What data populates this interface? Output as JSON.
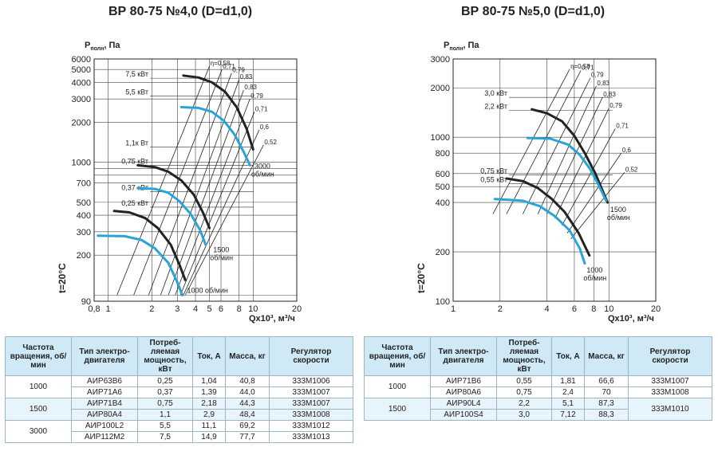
{
  "chart_data": [
    {
      "type": "line",
      "title": "ВР 80-75 №4,0 (D=d1,0)",
      "ylabel_main": "P",
      "ylabel_sub": "полн",
      "ylabel_unit": ", Па",
      "xlabel": "Qx10³, м³/ч",
      "temp_label": "t=20°C",
      "xscale": "log",
      "yscale": "log",
      "xlim": [
        0.8,
        20
      ],
      "ylim": [
        90,
        6000
      ],
      "xticks": [
        0.8,
        1,
        2,
        3,
        4,
        5,
        6,
        8,
        10,
        20
      ],
      "xtick_labels": [
        "0,8",
        "1",
        "2",
        "3",
        "4",
        "5",
        "6",
        "8",
        "10",
        "20"
      ],
      "yticks": [
        90,
        100,
        200,
        300,
        400,
        500,
        700,
        800,
        900,
        1000,
        2000,
        3000,
        4000,
        5000,
        6000
      ],
      "ytick_labels": [
        "90",
        "",
        "200",
        "300",
        "400",
        "500",
        "700",
        "",
        "",
        "1000",
        "2000",
        "3000",
        "4000",
        "5000",
        "6000"
      ],
      "grid": true,
      "series": [
        {
          "name": "3000 об/мин",
          "color": "#222222",
          "x": [
            3.3,
            4.2,
            5.2,
            6.4,
            7.7,
            9.0,
            10.0
          ],
          "y": [
            4500,
            4350,
            4000,
            3400,
            2600,
            1800,
            1250
          ]
        },
        {
          "name": "",
          "color": "#29a4d6",
          "x": [
            3.2,
            4.2,
            5.2,
            6.3,
            7.5,
            8.6,
            9.5
          ],
          "y": [
            2600,
            2570,
            2400,
            2050,
            1600,
            1200,
            950
          ]
        },
        {
          "name": "1500 об/мин",
          "color": "#222222",
          "x": [
            1.6,
            2.1,
            2.6,
            3.2,
            3.9,
            4.5,
            5.0
          ],
          "y": [
            950,
            920,
            850,
            730,
            570,
            420,
            320
          ]
        },
        {
          "name": "",
          "color": "#29a4d6",
          "x": [
            1.6,
            2.1,
            2.6,
            3.1,
            3.7,
            4.3,
            4.7
          ],
          "y": [
            640,
            630,
            590,
            510,
            410,
            310,
            240
          ]
        },
        {
          "name": "1000 об/мин",
          "color": "#222222",
          "x": [
            1.1,
            1.4,
            1.8,
            2.2,
            2.7,
            3.1,
            3.4
          ],
          "y": [
            430,
            420,
            380,
            320,
            240,
            170,
            130
          ]
        },
        {
          "name": "",
          "color": "#29a4d6",
          "x": [
            0.85,
            1.3,
            1.7,
            2.1,
            2.6,
            3.0,
            3.25
          ],
          "y": [
            280,
            278,
            260,
            225,
            175,
            125,
            100
          ]
        }
      ],
      "efficiency_rays": [
        {
          "label": "η=0,58",
          "x1": 1.15,
          "y1": 100,
          "x2": 5.0,
          "y2": 5300
        },
        {
          "label": "0,71",
          "x1": 1.5,
          "y1": 100,
          "x2": 6.1,
          "y2": 5000
        },
        {
          "label": "0,79",
          "x1": 1.9,
          "y1": 100,
          "x2": 7.1,
          "y2": 4700
        },
        {
          "label": "0,83",
          "x1": 2.3,
          "y1": 100,
          "x2": 8.0,
          "y2": 4200
        },
        {
          "label": "0,83",
          "x1": 2.6,
          "y1": 100,
          "x2": 8.6,
          "y2": 3500
        },
        {
          "label": "0,79",
          "x1": 2.9,
          "y1": 100,
          "x2": 9.5,
          "y2": 3000
        },
        {
          "label": "0,71",
          "x1": 3.15,
          "y1": 100,
          "x2": 10.2,
          "y2": 2400
        },
        {
          "label": "0,6",
          "x1": 3.3,
          "y1": 100,
          "x2": 11.0,
          "y2": 1750
        },
        {
          "label": "0,52",
          "x1": 3.4,
          "y1": 100,
          "x2": 11.8,
          "y2": 1350
        }
      ],
      "power_lines": [
        {
          "label": "7,5 кВт",
          "y": 4300
        },
        {
          "label": "5,5 кВт",
          "y": 3150
        },
        {
          "label": "1,1к Вт",
          "y": 1300
        },
        {
          "label": "0,75 кВт",
          "y": 950
        },
        {
          "label": "0,37 кВт",
          "y": 600
        },
        {
          "label": "0,25 кВт",
          "y": 460
        }
      ],
      "speed_labels": [
        {
          "label": "3000",
          "label2": "об/мин",
          "x": 10.2,
          "y": 900
        },
        {
          "label": "1500",
          "label2": "об/мин",
          "x": 5.3,
          "y": 210
        },
        {
          "label": "1000 об/мин",
          "label2": "",
          "x": 3.5,
          "y": 104
        }
      ]
    },
    {
      "type": "line",
      "title": "ВР 80-75 №5,0 (D=d1,0)",
      "ylabel_main": "P",
      "ylabel_sub": "полн",
      "ylabel_unit": ", Па",
      "xlabel": "Qx10³, м³/ч",
      "temp_label": "t=20°C",
      "xscale": "log",
      "yscale": "log",
      "xlim": [
        1,
        20
      ],
      "ylim": [
        100,
        3000
      ],
      "xticks": [
        1,
        2,
        4,
        6,
        8,
        10,
        20
      ],
      "xtick_labels": [
        "1",
        "2",
        "4",
        "6",
        "8",
        "10",
        "20"
      ],
      "yticks": [
        100,
        200,
        400,
        500,
        600,
        800,
        1000,
        2000,
        3000
      ],
      "ytick_labels": [
        "100",
        "200",
        "400",
        "500",
        "600",
        "800",
        "1000",
        "2000",
        "3000"
      ],
      "grid": true,
      "series": [
        {
          "name": "",
          "color": "#222222",
          "x": [
            3.2,
            4.0,
            5.0,
            6.0,
            7.0,
            8.2,
            9.8
          ],
          "y": [
            1480,
            1400,
            1250,
            1020,
            800,
            600,
            400
          ]
        },
        {
          "name": "1500 об/мин",
          "color": "#29a4d6",
          "x": [
            3.0,
            4.2,
            5.5,
            6.5,
            7.5,
            8.5,
            9.6
          ],
          "y": [
            990,
            980,
            900,
            780,
            650,
            520,
            410
          ]
        },
        {
          "name": "",
          "color": "#222222",
          "x": [
            2.2,
            2.8,
            3.5,
            4.3,
            5.2,
            6.4,
            7.5
          ],
          "y": [
            560,
            540,
            490,
            420,
            350,
            260,
            190
          ]
        },
        {
          "name": "1000 об/мин",
          "color": "#29a4d6",
          "x": [
            1.85,
            2.8,
            3.6,
            4.5,
            5.6,
            6.5,
            7.0
          ],
          "y": [
            420,
            410,
            380,
            330,
            270,
            210,
            170
          ]
        }
      ],
      "efficiency_rays": [
        {
          "label": "η=0,58",
          "x1": 1.8,
          "y1": 340,
          "x2": 5.6,
          "y2": 2600
        },
        {
          "label": "0,71",
          "x1": 2.2,
          "y1": 340,
          "x2": 6.6,
          "y2": 2550
        },
        {
          "label": "0,79",
          "x1": 2.8,
          "y1": 340,
          "x2": 7.6,
          "y2": 2300
        },
        {
          "label": "0,83",
          "x1": 3.5,
          "y1": 340,
          "x2": 8.3,
          "y2": 2050
        },
        {
          "label": "0,83",
          "x1": 4.0,
          "y1": 340,
          "x2": 9.1,
          "y2": 1750
        },
        {
          "label": "0,79",
          "x1": 4.5,
          "y1": 320,
          "x2": 10.0,
          "y2": 1500
        },
        {
          "label": "0,71",
          "x1": 5.0,
          "y1": 290,
          "x2": 11.0,
          "y2": 1130
        },
        {
          "label": "0,6",
          "x1": 5.4,
          "y1": 260,
          "x2": 12.0,
          "y2": 800
        },
        {
          "label": "0,52",
          "x1": 5.7,
          "y1": 240,
          "x2": 12.6,
          "y2": 610
        }
      ],
      "power_lines": [
        {
          "label": "3,0 кВт",
          "y": 1750
        },
        {
          "label": "2,2 кВт",
          "y": 1460
        },
        {
          "label": "0,75 кВт",
          "y": 590
        },
        {
          "label": "0,55 кВт",
          "y": 520
        }
      ],
      "speed_labels": [
        {
          "label": "1500",
          "label2": "об/мин",
          "x": 10.2,
          "y": 350
        },
        {
          "label": "1000",
          "label2": "об/мин",
          "x": 7.2,
          "y": 150
        }
      ]
    }
  ],
  "table_left": {
    "headers": [
      "Частота вращения, об/мин",
      "Тип электро-двигателя",
      "Потреб-ляемая мощность, кВт",
      "Ток, А",
      "Масса, кг",
      "Регулятор скорости"
    ],
    "rows": [
      {
        "speed": "1000",
        "motor": "АИР63В6",
        "power": "0,25",
        "current": "1,04",
        "mass": "40,8",
        "regulator": "333М1006"
      },
      {
        "speed": "",
        "motor": "АИР71А6",
        "power": "0,37",
        "current": "1,39",
        "mass": "44,0",
        "regulator": "333М1007"
      },
      {
        "speed": "1500",
        "motor": "АИР71В4",
        "power": "0,75",
        "current": "2,18",
        "mass": "44,3",
        "regulator": "333М1007"
      },
      {
        "speed": "",
        "motor": "АИР80А4",
        "power": "1,1",
        "current": "2,9",
        "mass": "48,4",
        "regulator": "333М1008"
      },
      {
        "speed": "3000",
        "motor": "АИР100L2",
        "power": "5,5",
        "current": "11,1",
        "mass": "69,2",
        "regulator": "333М1012"
      },
      {
        "speed": "",
        "motor": "АИР112М2",
        "power": "7,5",
        "current": "14,9",
        "mass": "77,7",
        "regulator": "333М1013"
      }
    ]
  },
  "table_right": {
    "headers": [
      "Частота вращения, об/мин",
      "Тип электро-двигателя",
      "Потреб-ляемая мощность, кВт",
      "Ток, А",
      "Масса, кг",
      "Регулятор скорости"
    ],
    "rows": [
      {
        "speed": "1000",
        "motor": "АИР71В6",
        "power": "0,55",
        "current": "1,81",
        "mass": "66,6",
        "regulator": "333М1007"
      },
      {
        "speed": "",
        "motor": "АИР80А6",
        "power": "0,75",
        "current": "2,4",
        "mass": "70",
        "regulator": "333М1008"
      },
      {
        "speed": "1500",
        "motor": "АИР90L4",
        "power": "2,2",
        "current": "5,1",
        "mass": "87,3",
        "regulator": "333М1010"
      },
      {
        "speed": "",
        "motor": "АИР100S4",
        "power": "3,0",
        "current": "7,12",
        "mass": "88,3",
        "regulator": ""
      }
    ]
  },
  "colors": {
    "curve_dark": "#222222",
    "curve_blue": "#29a4d6",
    "table_header": "#cfe9f7",
    "grid": "#333333"
  }
}
